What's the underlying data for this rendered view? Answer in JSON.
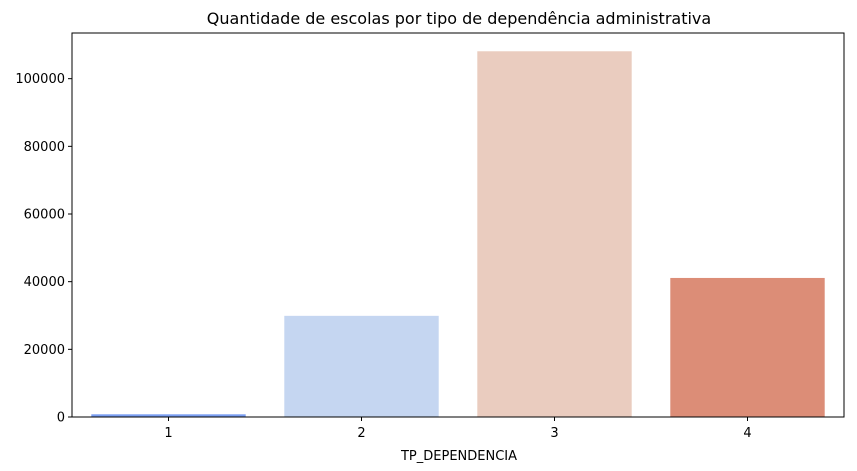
{
  "chart_data": {
    "type": "bar",
    "title": "Quantidade de escolas por tipo de dependência administrativa",
    "xlabel": "TP_DEPENDENCIA",
    "ylabel": "",
    "categories": [
      "1",
      "2",
      "3",
      "4"
    ],
    "values": [
      800,
      29900,
      108100,
      41100
    ],
    "colors": [
      "#7b9ff2",
      "#c5d6f1",
      "#eaccbf",
      "#dc8d77"
    ],
    "ylim": [
      0,
      113500
    ],
    "yticks": [
      0,
      20000,
      40000,
      60000,
      80000,
      100000
    ],
    "ytick_labels": [
      "0",
      "20000",
      "40000",
      "60000",
      "80000",
      "100000"
    ],
    "grid": false,
    "legend": "none"
  }
}
